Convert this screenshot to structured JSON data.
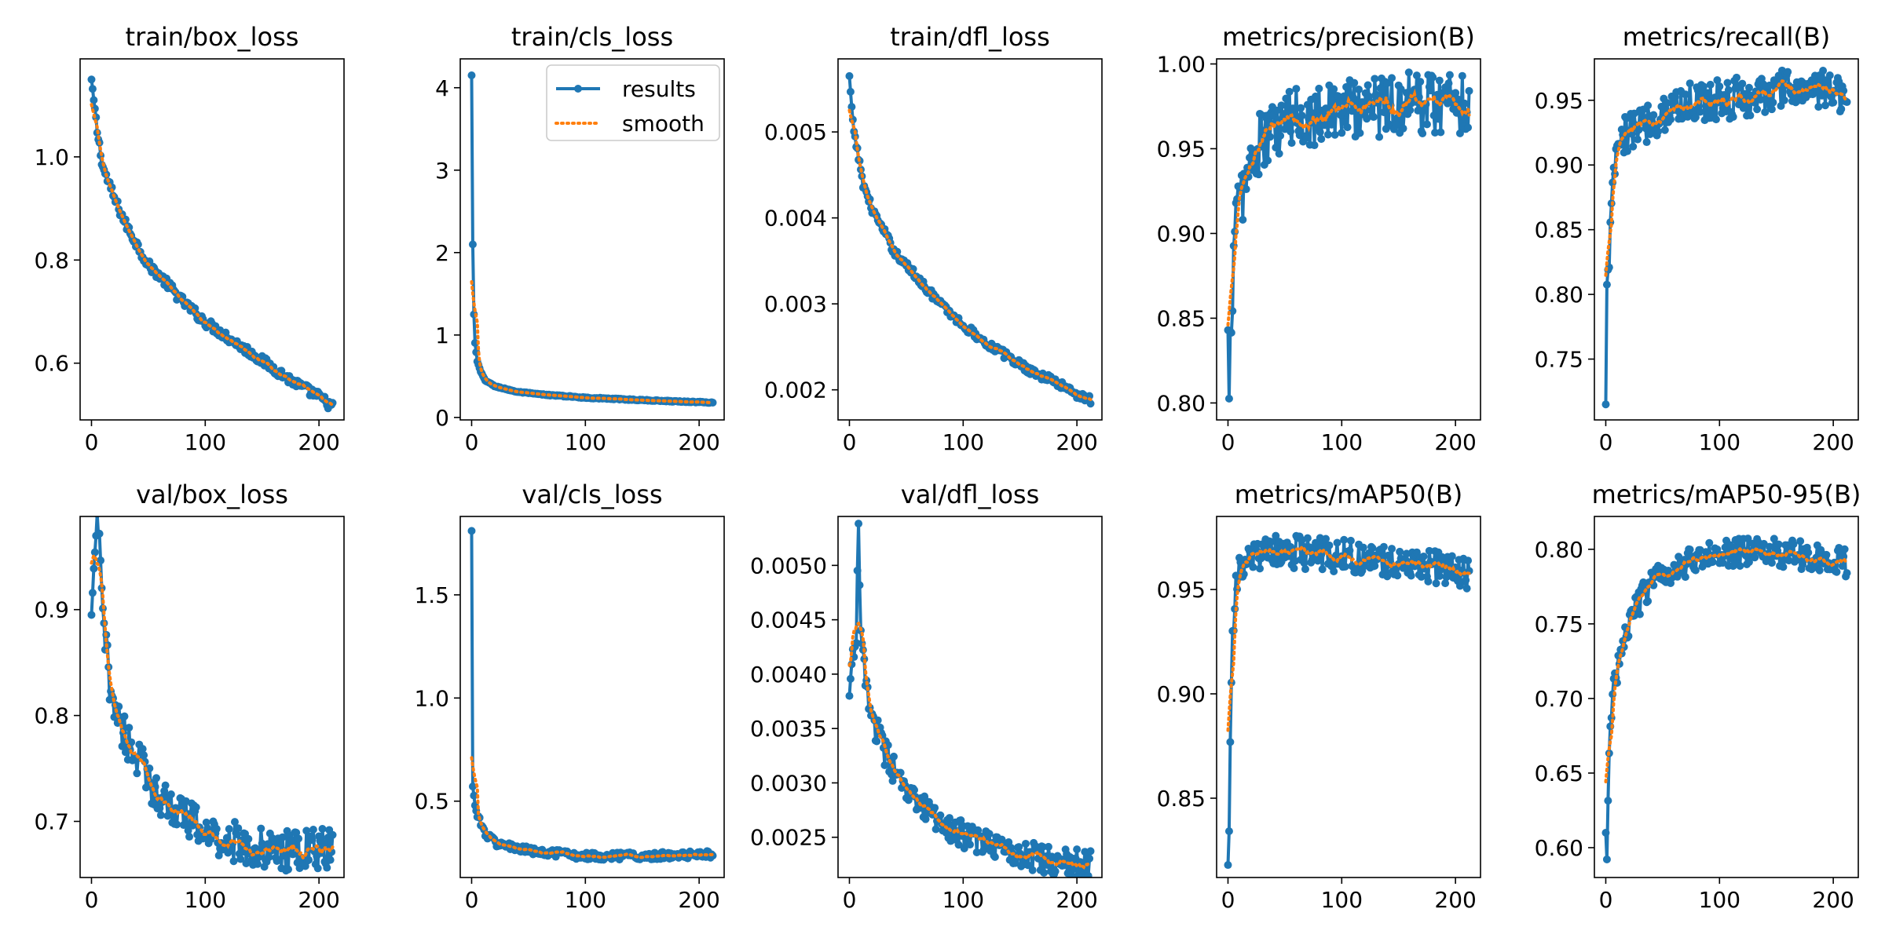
{
  "colors": {
    "results": "#1f77b4",
    "smooth": "#ff7f0e",
    "axes": "#000000",
    "background": "#ffffff"
  },
  "legend": {
    "placement": "top-right",
    "panel_index": 1,
    "results_label": "results",
    "smooth_label": "smooth"
  },
  "chart_data": [
    {
      "type": "line",
      "title": "train/box_loss",
      "xlim": [
        -10,
        222
      ],
      "ylim": [
        0.49,
        1.19
      ],
      "xticks": [
        0,
        100,
        200
      ],
      "xtick_labels": [
        "0",
        "100",
        "200"
      ],
      "yticks": [
        0.6,
        0.8,
        1.0
      ],
      "ytick_labels": [
        "0.6",
        "0.8",
        "1.0"
      ],
      "anchors": [
        [
          0,
          1.15
        ],
        [
          5,
          1.05
        ],
        [
          10,
          0.98
        ],
        [
          20,
          0.92
        ],
        [
          30,
          0.87
        ],
        [
          40,
          0.83
        ],
        [
          50,
          0.79
        ],
        [
          60,
          0.77
        ],
        [
          80,
          0.72
        ],
        [
          100,
          0.68
        ],
        [
          120,
          0.65
        ],
        [
          140,
          0.62
        ],
        [
          160,
          0.59
        ],
        [
          180,
          0.56
        ],
        [
          200,
          0.535
        ],
        [
          212,
          0.515
        ]
      ],
      "noise": 0.006
    },
    {
      "type": "line",
      "title": "train/cls_loss",
      "xlim": [
        -10,
        222
      ],
      "ylim": [
        -0.03,
        4.35
      ],
      "xticks": [
        0,
        100,
        200
      ],
      "xtick_labels": [
        "0",
        "100",
        "200"
      ],
      "yticks": [
        0,
        1,
        2,
        3,
        4
      ],
      "ytick_labels": [
        "0",
        "1",
        "2",
        "3",
        "4"
      ],
      "anchors": [
        [
          0,
          4.15
        ],
        [
          1,
          2.1
        ],
        [
          2,
          1.25
        ],
        [
          3,
          0.9
        ],
        [
          5,
          0.68
        ],
        [
          8,
          0.55
        ],
        [
          12,
          0.45
        ],
        [
          20,
          0.38
        ],
        [
          40,
          0.31
        ],
        [
          60,
          0.28
        ],
        [
          100,
          0.24
        ],
        [
          150,
          0.21
        ],
        [
          212,
          0.18
        ]
      ],
      "noise": 0.004
    },
    {
      "type": "line",
      "title": "train/dfl_loss",
      "xlim": [
        -10,
        222
      ],
      "ylim": [
        0.00165,
        0.00585
      ],
      "xticks": [
        0,
        100,
        200
      ],
      "xtick_labels": [
        "0",
        "100",
        "200"
      ],
      "yticks": [
        0.002,
        0.003,
        0.004,
        0.005
      ],
      "ytick_labels": [
        "0.002",
        "0.003",
        "0.004",
        "0.005"
      ],
      "anchors": [
        [
          0,
          0.00565
        ],
        [
          3,
          0.0051
        ],
        [
          8,
          0.0047
        ],
        [
          12,
          0.0044
        ],
        [
          20,
          0.0041
        ],
        [
          30,
          0.00385
        ],
        [
          40,
          0.0036
        ],
        [
          50,
          0.00345
        ],
        [
          60,
          0.0033
        ],
        [
          80,
          0.003
        ],
        [
          100,
          0.00275
        ],
        [
          120,
          0.00255
        ],
        [
          140,
          0.00238
        ],
        [
          160,
          0.00222
        ],
        [
          180,
          0.0021
        ],
        [
          200,
          0.00195
        ],
        [
          212,
          0.00188
        ]
      ],
      "noise": 3e-05
    },
    {
      "type": "line",
      "title": "metrics/precision(B)",
      "xlim": [
        -10,
        222
      ],
      "ylim": [
        0.79,
        1.003
      ],
      "xticks": [
        0,
        100,
        200
      ],
      "xtick_labels": [
        "0",
        "100",
        "200"
      ],
      "yticks": [
        0.8,
        0.85,
        0.9,
        0.95,
        1.0
      ],
      "ytick_labels": [
        "0.80",
        "0.85",
        "0.90",
        "0.95",
        "1.00"
      ],
      "anchors": [
        [
          0,
          0.843
        ],
        [
          1,
          0.8
        ],
        [
          2,
          0.845
        ],
        [
          4,
          0.87
        ],
        [
          6,
          0.9
        ],
        [
          10,
          0.92
        ],
        [
          15,
          0.93
        ],
        [
          20,
          0.94
        ],
        [
          30,
          0.955
        ],
        [
          50,
          0.965
        ],
        [
          80,
          0.972
        ],
        [
          120,
          0.975
        ],
        [
          160,
          0.978
        ],
        [
          212,
          0.978
        ]
      ],
      "noise": 0.012
    },
    {
      "type": "line",
      "title": "metrics/recall(B)",
      "xlim": [
        -10,
        222
      ],
      "ylim": [
        0.703,
        0.982
      ],
      "xticks": [
        0,
        100,
        200
      ],
      "xtick_labels": [
        "0",
        "100",
        "200"
      ],
      "yticks": [
        0.75,
        0.8,
        0.85,
        0.9,
        0.95
      ],
      "ytick_labels": [
        "0.75",
        "0.80",
        "0.85",
        "0.90",
        "0.95"
      ],
      "anchors": [
        [
          0,
          0.715
        ],
        [
          1,
          0.81
        ],
        [
          3,
          0.83
        ],
        [
          5,
          0.86
        ],
        [
          8,
          0.9
        ],
        [
          12,
          0.915
        ],
        [
          20,
          0.925
        ],
        [
          40,
          0.935
        ],
        [
          60,
          0.945
        ],
        [
          80,
          0.95
        ],
        [
          120,
          0.952
        ],
        [
          160,
          0.958
        ],
        [
          212,
          0.957
        ]
      ],
      "noise": 0.01
    },
    {
      "type": "line",
      "title": "val/box_loss",
      "xlim": [
        -10,
        222
      ],
      "ylim": [
        0.647,
        0.988
      ],
      "xticks": [
        0,
        100,
        200
      ],
      "xtick_labels": [
        "0",
        "100",
        "200"
      ],
      "yticks": [
        0.7,
        0.8,
        0.9
      ],
      "ytick_labels": [
        "0.7",
        "0.8",
        "0.9"
      ],
      "anchors": [
        [
          0,
          0.895
        ],
        [
          3,
          0.96
        ],
        [
          6,
          0.98
        ],
        [
          10,
          0.89
        ],
        [
          15,
          0.84
        ],
        [
          20,
          0.81
        ],
        [
          30,
          0.78
        ],
        [
          40,
          0.76
        ],
        [
          50,
          0.74
        ],
        [
          60,
          0.725
        ],
        [
          80,
          0.705
        ],
        [
          100,
          0.69
        ],
        [
          120,
          0.682
        ],
        [
          150,
          0.674
        ],
        [
          180,
          0.672
        ],
        [
          212,
          0.675
        ]
      ],
      "noise": 0.012
    },
    {
      "type": "line",
      "title": "val/cls_loss",
      "xlim": [
        -10,
        222
      ],
      "ylim": [
        0.13,
        1.88
      ],
      "xticks": [
        0,
        100,
        200
      ],
      "xtick_labels": [
        "0",
        "100",
        "200"
      ],
      "yticks": [
        0.5,
        1.0,
        1.5
      ],
      "ytick_labels": [
        "0.5",
        "1.0",
        "1.5"
      ],
      "anchors": [
        [
          0,
          1.81
        ],
        [
          1,
          0.57
        ],
        [
          3,
          0.48
        ],
        [
          6,
          0.42
        ],
        [
          10,
          0.36
        ],
        [
          20,
          0.3
        ],
        [
          40,
          0.27
        ],
        [
          60,
          0.25
        ],
        [
          100,
          0.235
        ],
        [
          150,
          0.235
        ],
        [
          212,
          0.24
        ]
      ],
      "noise": 0.012
    },
    {
      "type": "line",
      "title": "val/dfl_loss",
      "xlim": [
        -10,
        222
      ],
      "ylim": [
        0.00213,
        0.00545
      ],
      "xticks": [
        0,
        100,
        200
      ],
      "xtick_labels": [
        "0",
        "100",
        "200"
      ],
      "yticks": [
        0.0025,
        0.003,
        0.0035,
        0.004,
        0.0045,
        0.005
      ],
      "ytick_labels": [
        "0.0025",
        "0.0030",
        "0.0035",
        "0.0040",
        "0.0045",
        "0.0050"
      ],
      "anchors": [
        [
          0,
          0.0038
        ],
        [
          3,
          0.0042
        ],
        [
          6,
          0.0044
        ],
        [
          8,
          0.0053
        ],
        [
          10,
          0.0043
        ],
        [
          15,
          0.0039
        ],
        [
          20,
          0.0036
        ],
        [
          30,
          0.0033
        ],
        [
          40,
          0.0031
        ],
        [
          50,
          0.0029
        ],
        [
          60,
          0.0028
        ],
        [
          80,
          0.00265
        ],
        [
          100,
          0.00252
        ],
        [
          120,
          0.00245
        ],
        [
          150,
          0.00235
        ],
        [
          180,
          0.00228
        ],
        [
          212,
          0.00225
        ]
      ],
      "noise": 8e-05
    },
    {
      "type": "line",
      "title": "metrics/mAP50(B)",
      "xlim": [
        -10,
        222
      ],
      "ylim": [
        0.812,
        0.985
      ],
      "xticks": [
        0,
        100,
        200
      ],
      "xtick_labels": [
        "0",
        "100",
        "200"
      ],
      "yticks": [
        0.85,
        0.9,
        0.95
      ],
      "ytick_labels": [
        "0.85",
        "0.90",
        "0.95"
      ],
      "anchors": [
        [
          0,
          0.818
        ],
        [
          1,
          0.835
        ],
        [
          2,
          0.878
        ],
        [
          4,
          0.925
        ],
        [
          7,
          0.95
        ],
        [
          10,
          0.958
        ],
        [
          20,
          0.965
        ],
        [
          40,
          0.968
        ],
        [
          60,
          0.968
        ],
        [
          100,
          0.966
        ],
        [
          140,
          0.964
        ],
        [
          180,
          0.961
        ],
        [
          212,
          0.958
        ]
      ],
      "noise": 0.005
    },
    {
      "type": "line",
      "title": "metrics/mAP50-95(B)",
      "xlim": [
        -10,
        222
      ],
      "ylim": [
        0.58,
        0.822
      ],
      "xticks": [
        0,
        100,
        200
      ],
      "xtick_labels": [
        "0",
        "100",
        "200"
      ],
      "yticks": [
        0.6,
        0.65,
        0.7,
        0.75,
        0.8
      ],
      "ytick_labels": [
        "0.60",
        "0.65",
        "0.70",
        "0.75",
        "0.80"
      ],
      "anchors": [
        [
          0,
          0.61
        ],
        [
          1,
          0.592
        ],
        [
          2,
          0.632
        ],
        [
          4,
          0.68
        ],
        [
          7,
          0.705
        ],
        [
          10,
          0.72
        ],
        [
          15,
          0.735
        ],
        [
          20,
          0.75
        ],
        [
          30,
          0.765
        ],
        [
          40,
          0.778
        ],
        [
          60,
          0.788
        ],
        [
          80,
          0.794
        ],
        [
          100,
          0.797
        ],
        [
          140,
          0.799
        ],
        [
          180,
          0.795
        ],
        [
          212,
          0.791
        ]
      ],
      "noise": 0.006
    }
  ]
}
